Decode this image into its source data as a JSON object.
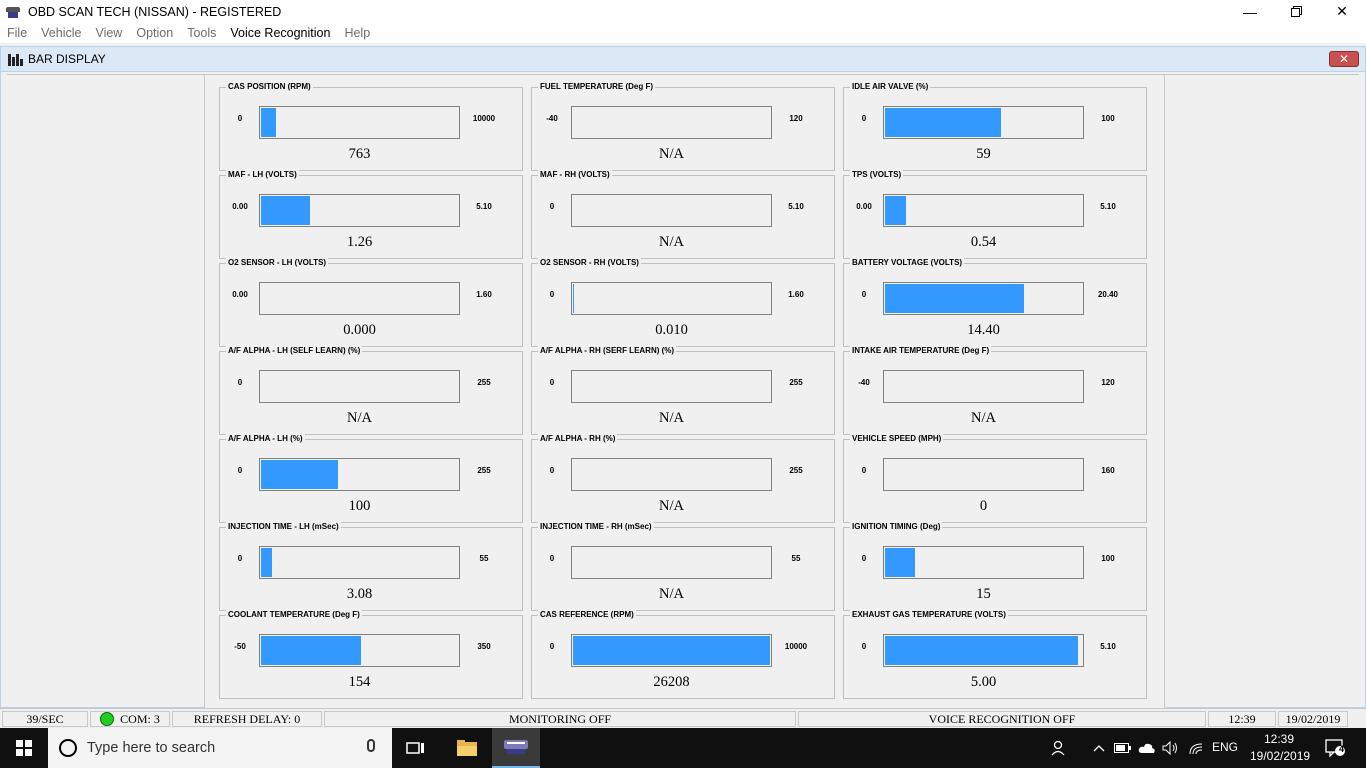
{
  "window": {
    "title": "OBD SCAN TECH (NISSAN)  -  REGISTERED"
  },
  "menu": [
    "File",
    "Vehicle",
    "View",
    "Option",
    "Tools",
    "Voice Recognition",
    "Help"
  ],
  "child_window": {
    "title": "BAR DISPLAY",
    "close_label": "✕"
  },
  "gauges": [
    {
      "title": "CAS POSITION (RPM)",
      "min": "0",
      "max": "10000",
      "value": "763",
      "fill": 0.076
    },
    {
      "title": "FUEL TEMPERATURE (Deg F)",
      "min": "-40",
      "max": "120",
      "value": "N/A",
      "fill": 0
    },
    {
      "title": "IDLE AIR VALVE (%)",
      "min": "0",
      "max": "100",
      "value": "59",
      "fill": 0.59
    },
    {
      "title": "MAF - LH (VOLTS)",
      "min": "0.00",
      "max": "5.10",
      "value": "1.26",
      "fill": 0.247
    },
    {
      "title": "MAF - RH (VOLTS)",
      "min": "0",
      "max": "5.10",
      "value": "N/A",
      "fill": 0
    },
    {
      "title": "TPS (VOLTS)",
      "min": "0.00",
      "max": "5.10",
      "value": "0.54",
      "fill": 0.106
    },
    {
      "title": "O2 SENSOR - LH (VOLTS)",
      "min": "0.00",
      "max": "1.60",
      "value": "0.000",
      "fill": 0
    },
    {
      "title": "O2 SENSOR - RH (VOLTS)",
      "min": "0",
      "max": "1.60",
      "value": "0.010",
      "fill": 0.006
    },
    {
      "title": "BATTERY VOLTAGE (VOLTS)",
      "min": "0",
      "max": "20.40",
      "value": "14.40",
      "fill": 0.706
    },
    {
      "title": "A/F ALPHA - LH (SELF LEARN) (%)",
      "min": "0",
      "max": "255",
      "value": "N/A",
      "fill": 0
    },
    {
      "title": "A/F ALPHA - RH (SERF LEARN) (%)",
      "min": "0",
      "max": "255",
      "value": "N/A",
      "fill": 0
    },
    {
      "title": "INTAKE AIR TEMPERATURE (Deg F)",
      "min": "-40",
      "max": "120",
      "value": "N/A",
      "fill": 0
    },
    {
      "title": "A/F ALPHA - LH (%)",
      "min": "0",
      "max": "255",
      "value": "100",
      "fill": 0.392
    },
    {
      "title": "A/F ALPHA - RH (%)",
      "min": "0",
      "max": "255",
      "value": "N/A",
      "fill": 0
    },
    {
      "title": "VEHICLE SPEED (MPH)",
      "min": "0",
      "max": "160",
      "value": "0",
      "fill": 0
    },
    {
      "title": "INJECTION TIME - LH (mSec)",
      "min": "0",
      "max": "55",
      "value": "3.08",
      "fill": 0.056
    },
    {
      "title": "INJECTION TIME - RH (mSec)",
      "min": "0",
      "max": "55",
      "value": "N/A",
      "fill": 0
    },
    {
      "title": "IGNITION TIMING (Deg)",
      "min": "0",
      "max": "100",
      "value": "15",
      "fill": 0.15
    },
    {
      "title": "COOLANT TEMPERATURE (Deg F)",
      "min": "-50",
      "max": "350",
      "value": "154",
      "fill": 0.51
    },
    {
      "title": "CAS REFERENCE (RPM)",
      "min": "0",
      "max": "10000",
      "value": "26208",
      "fill": 1.0
    },
    {
      "title": "EXHAUST GAS TEMPERATURE (VOLTS)",
      "min": "0",
      "max": "5.10",
      "value": "5.00",
      "fill": 0.98
    }
  ],
  "status": {
    "rate": "39/SEC",
    "com": "COM:  3",
    "refresh": "REFRESH DELAY:  0",
    "monitoring": "MONITORING OFF",
    "voice": "VOICE RECOGNITION OFF",
    "time": "12:39",
    "date": "19/02/2019"
  },
  "taskbar": {
    "search_placeholder": "Type here to search",
    "language": "ENG",
    "clock_time": "12:39",
    "clock_date": "19/02/2019",
    "notification_count": "4"
  },
  "colors": {
    "bar_fill": "#3399ff",
    "led": "#22cc22"
  }
}
